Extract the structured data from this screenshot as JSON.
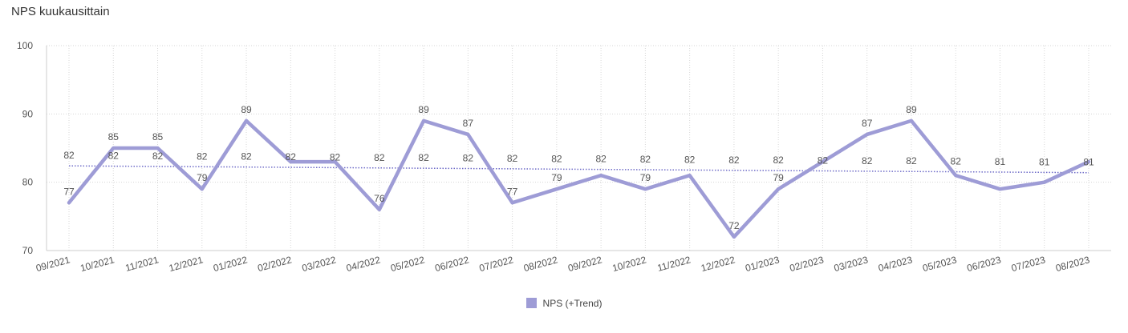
{
  "title": "NPS kuukausittain",
  "colors": {
    "line": "#9e9cd6",
    "trend": "#6f6cc8",
    "grid": "#d6d6d6",
    "axis": "#cccccc",
    "text": "#555555"
  },
  "chart_data": {
    "type": "line",
    "title": "NPS kuukausittain",
    "xlabel": "",
    "ylabel": "",
    "ylim": [
      70,
      100
    ],
    "yticks": [
      70,
      80,
      90,
      100
    ],
    "grid": true,
    "legend_position": "bottom",
    "categories": [
      "09/2021",
      "10/2021",
      "11/2021",
      "12/2021",
      "01/2022",
      "02/2022",
      "03/2022",
      "04/2022",
      "05/2022",
      "06/2022",
      "07/2022",
      "08/2022",
      "09/2022",
      "10/2022",
      "11/2022",
      "12/2022",
      "01/2023",
      "02/2023",
      "03/2023",
      "04/2023",
      "05/2023",
      "06/2023",
      "07/2023",
      "08/2023"
    ],
    "series": [
      {
        "name": "NPS (+Trend)",
        "values": [
          77,
          85,
          85,
          79,
          89,
          83,
          83,
          76,
          89,
          87,
          77,
          79,
          81,
          79,
          81,
          72,
          79,
          83,
          87,
          89,
          81,
          79,
          80,
          83
        ],
        "labels": [
          "77",
          "85",
          "85",
          "79",
          "89",
          "",
          "",
          "76",
          "89",
          "87",
          "77",
          "79",
          "",
          "79",
          "",
          "72",
          "79",
          "",
          "87",
          "89",
          "",
          "",
          "",
          ""
        ]
      }
    ],
    "trend": {
      "start": 82.4,
      "end": 81.4,
      "labels": [
        "82",
        "82",
        "82",
        "82",
        "82",
        "82",
        "82",
        "82",
        "82",
        "82",
        "82",
        "82",
        "82",
        "82",
        "82",
        "82",
        "82",
        "82",
        "82",
        "82",
        "82",
        "81",
        "81",
        "81"
      ]
    }
  }
}
